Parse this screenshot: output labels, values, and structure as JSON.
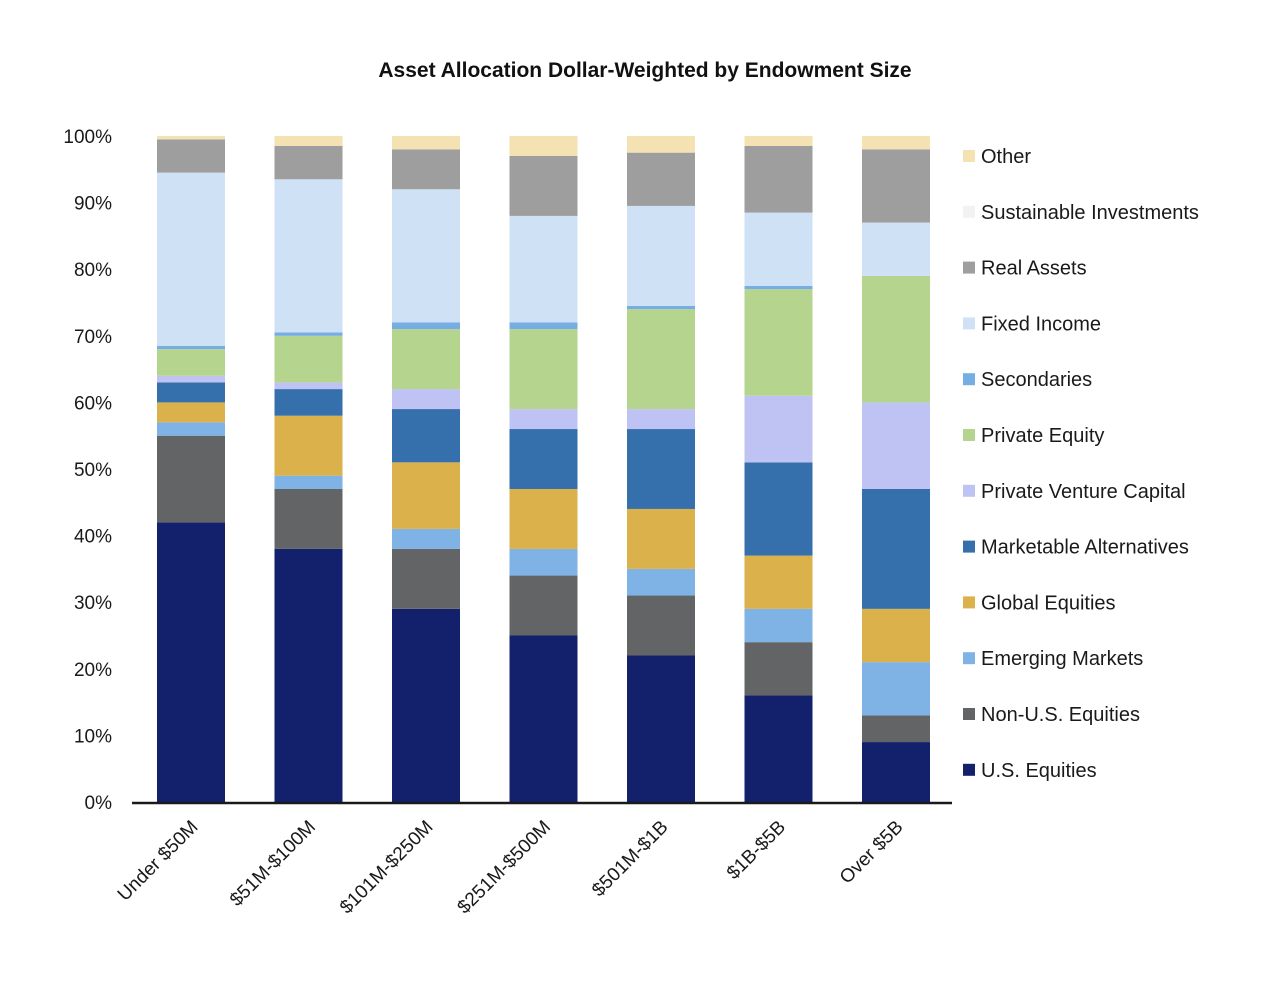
{
  "chart_data": {
    "type": "bar",
    "stacked": true,
    "title": "Asset Allocation Dollar-Weighted by Endowment Size",
    "xlabel": "",
    "ylabel": "",
    "ylim": [
      0,
      100
    ],
    "yticks": [
      "0%",
      "10%",
      "20%",
      "30%",
      "40%",
      "50%",
      "60%",
      "70%",
      "80%",
      "90%",
      "100%"
    ],
    "categories": [
      "Under $50M",
      "$51M-$100M",
      "$101M-$250M",
      "$251M-$500M",
      "$501M-$1B",
      "$1B-$5B",
      "Over $5B"
    ],
    "legend_position": "right",
    "grid": false,
    "series": [
      {
        "name": "U.S. Equities",
        "color": "#13206b",
        "values": [
          42,
          38,
          29,
          25,
          22,
          16,
          9
        ]
      },
      {
        "name": "Non-U.S. Equities",
        "color": "#636466",
        "values": [
          13,
          9,
          9,
          9,
          9,
          8,
          4
        ]
      },
      {
        "name": "Emerging Markets",
        "color": "#7fb2e5",
        "values": [
          2,
          2,
          3,
          4,
          4,
          5,
          8
        ]
      },
      {
        "name": "Global Equities",
        "color": "#dbb14b",
        "values": [
          3,
          9,
          10,
          9,
          9,
          8,
          8
        ]
      },
      {
        "name": "Marketable Alternatives",
        "color": "#3570ad",
        "values": [
          3,
          4,
          8,
          9,
          12,
          14,
          18
        ]
      },
      {
        "name": "Private Venture Capital",
        "color": "#bfc3f3",
        "values": [
          1,
          1,
          3,
          3,
          3,
          10,
          13
        ]
      },
      {
        "name": "Private Equity",
        "color": "#b5d48e",
        "values": [
          4,
          7,
          9,
          12,
          15,
          16,
          19
        ]
      },
      {
        "name": "Secondaries",
        "color": "#76aee3",
        "values": [
          0.5,
          0.5,
          1,
          1,
          0.5,
          0.5,
          0
        ]
      },
      {
        "name": "Fixed Income",
        "color": "#cfe2f5",
        "values": [
          26,
          23,
          20,
          16,
          15,
          11,
          8
        ]
      },
      {
        "name": "Sustainable Investments",
        "color": "#f2f2f2",
        "values": [
          0,
          0,
          0,
          0,
          0,
          0,
          0
        ]
      },
      {
        "name": "Real Assets",
        "color": "#9e9e9e",
        "values": [
          5,
          5,
          6,
          9,
          8,
          10,
          11
        ]
      },
      {
        "name": "Other",
        "color": "#f4e2b3",
        "values": [
          0.5,
          1.5,
          2,
          3,
          2.5,
          1.5,
          2
        ]
      }
    ],
    "legend_order": [
      "Other",
      "Sustainable Investments",
      "Real Assets",
      "Fixed Income",
      "Secondaries",
      "Private Equity",
      "Private Venture Capital",
      "Marketable Alternatives",
      "Global Equities",
      "Emerging Markets",
      "Non-U.S. Equities",
      "U.S. Equities"
    ]
  }
}
